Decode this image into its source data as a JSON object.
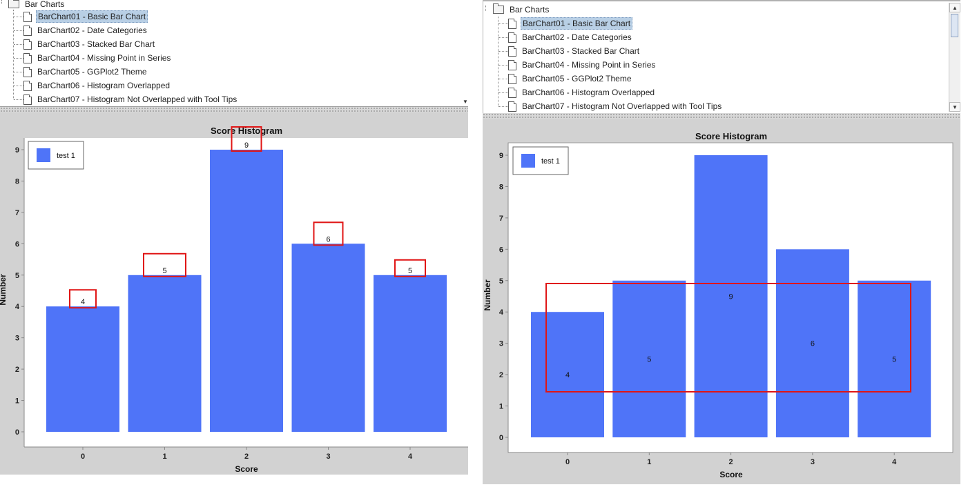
{
  "tree": {
    "root_label": "Bar Charts",
    "items": [
      {
        "label": "BarChart01 - Basic Bar Chart",
        "selected": true
      },
      {
        "label": "BarChart02 - Date Categories",
        "selected": false
      },
      {
        "label": "BarChart03 - Stacked Bar Chart",
        "selected": false
      },
      {
        "label": "BarChart04 - Missing Point in Series",
        "selected": false
      },
      {
        "label": "BarChart05 - GGPlot2 Theme",
        "selected": false
      },
      {
        "label": "BarChart06 - Histogram Overlapped",
        "selected": false
      },
      {
        "label": "BarChart07 - Histogram Not Overlapped with Tool Tips",
        "selected": false
      }
    ]
  },
  "colors": {
    "bar": "#4f74f8",
    "highlight": "#e01515",
    "plot_background": "#ffffff",
    "panel_background": "#d2d2d2"
  },
  "chart_data": [
    {
      "type": "bar",
      "title": "Score Histogram",
      "xlabel": "Score",
      "ylabel": "Number",
      "categories": [
        "0",
        "1",
        "2",
        "3",
        "4"
      ],
      "series": [
        {
          "name": "test 1",
          "values": [
            4,
            5,
            9,
            6,
            5
          ]
        }
      ],
      "data_labels": [
        "4",
        "5",
        "9",
        "6",
        "5"
      ],
      "data_label_position": "above bar top",
      "yticks": [
        "0",
        "1",
        "2",
        "3",
        "4",
        "5",
        "6",
        "7",
        "8",
        "9"
      ],
      "ylim": [
        0,
        9
      ],
      "legend": "top-left",
      "grid": false
    },
    {
      "type": "bar",
      "title": "Score Histogram",
      "xlabel": "Score",
      "ylabel": "Number",
      "categories": [
        "0",
        "1",
        "2",
        "3",
        "4"
      ],
      "series": [
        {
          "name": "test 1",
          "values": [
            4,
            5,
            9,
            6,
            5
          ]
        }
      ],
      "data_labels": [
        "4",
        "5",
        "9",
        "6",
        "5"
      ],
      "data_label_position": "middle of bar",
      "yticks": [
        "0",
        "1",
        "2",
        "3",
        "4",
        "5",
        "6",
        "7",
        "8",
        "9"
      ],
      "ylim": [
        0,
        9
      ],
      "legend": "top-left",
      "grid": false
    }
  ]
}
